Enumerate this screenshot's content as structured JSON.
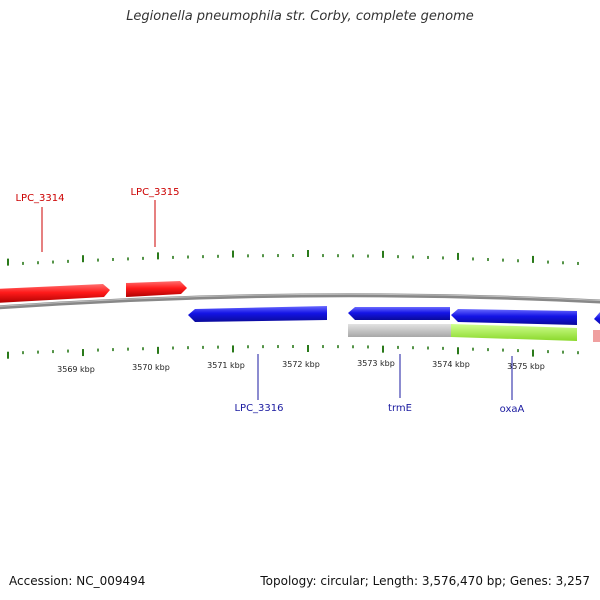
{
  "title": "Legionella pneumophila str. Corby, complete genome",
  "footer": {
    "accession": "Accession: NC_009494",
    "summary": "Topology: circular; Length: 3,576,470 bp; Genes: 3,257"
  },
  "colors": {
    "backbone": "#888888",
    "tick": "#2a7a1a",
    "forward_gene": "#ff1a1a",
    "reverse_gene": "#1414e6",
    "rna_gray": "#c8c8c8",
    "highlight_green": "#a8f040",
    "pink": "#f0a0a0",
    "forward_label": "#cc0000",
    "reverse_label": "#1a1aa0"
  },
  "ruler_labels": [
    {
      "id": "k3569",
      "text": "3569 kbp"
    },
    {
      "id": "k3570",
      "text": "3570 kbp"
    },
    {
      "id": "k3571",
      "text": "3571 kbp"
    },
    {
      "id": "k3572",
      "text": "3572 kbp"
    },
    {
      "id": "k3573",
      "text": "3573 kbp"
    },
    {
      "id": "k3574",
      "text": "3574 kbp"
    },
    {
      "id": "k3575",
      "text": "3575 kbp"
    }
  ],
  "gene_labels": [
    {
      "id": "lpc3314",
      "text": "LPC_3314",
      "strand": "forward"
    },
    {
      "id": "lpc3315",
      "text": "LPC_3315",
      "strand": "forward"
    },
    {
      "id": "lpc3316",
      "text": "LPC_3316",
      "strand": "reverse"
    },
    {
      "id": "trme",
      "text": "trmE",
      "strand": "reverse"
    },
    {
      "id": "oxaa",
      "text": "oxaA",
      "strand": "reverse"
    }
  ]
}
